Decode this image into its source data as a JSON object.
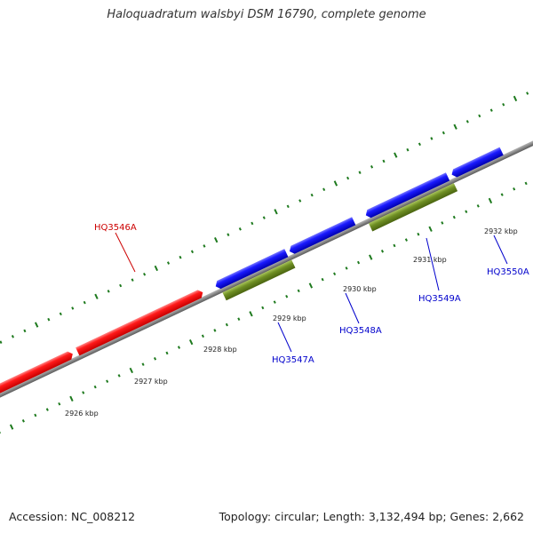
{
  "title": "Haloquadratum walsbyi DSM 16790, complete genome",
  "footer": {
    "accession": "Accession: NC_008212",
    "summary": "Topology: circular; Length: 3,132,494 bp; Genes: 2,662"
  },
  "colors": {
    "backbone": "#7a7a7a",
    "forward_gene": "#ee1111",
    "reverse_gene": "#1a1ae6",
    "rna_feature": "#6b8c22",
    "tick": "#1e7a1e",
    "forward_label": "#cc0000",
    "reverse_label": "#0000cc"
  },
  "ticks": [
    {
      "label": "2926 kbp"
    },
    {
      "label": "2927 kbp"
    },
    {
      "label": "2928 kbp"
    },
    {
      "label": "2929 kbp"
    },
    {
      "label": "2930 kbp"
    },
    {
      "label": "2931 kbp"
    },
    {
      "label": "2932 kbp"
    }
  ],
  "gene_labels": [
    {
      "name": "HQ3546A",
      "strand": "forward"
    },
    {
      "name": "HQ3547A",
      "strand": "reverse"
    },
    {
      "name": "HQ3548A",
      "strand": "reverse"
    },
    {
      "name": "HQ3549A",
      "strand": "reverse"
    },
    {
      "name": "HQ3550A",
      "strand": "reverse"
    }
  ]
}
